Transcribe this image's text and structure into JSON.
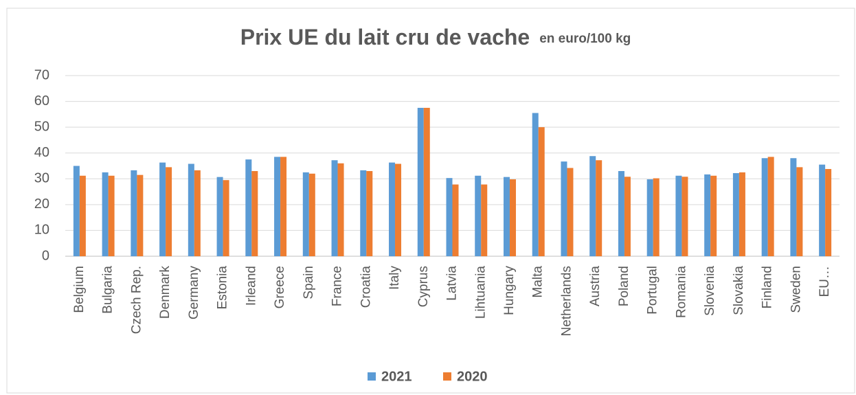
{
  "chart_data": {
    "type": "bar",
    "title": "Prix UE du lait cru de vache",
    "subtitle": "en euro/100 kg",
    "categories": [
      "Belgium",
      "Bulgaria",
      "Czech Rep.",
      "Denmark",
      "Germany",
      "Estonia",
      "Irleand",
      "Greece",
      "Spain",
      "France",
      "Croatia",
      "Italy",
      "Cyprus",
      "Latvia",
      "Lihtuania",
      "Hungary",
      "Malta",
      "Netherlands",
      "Austria",
      "Poland",
      "Portugal",
      "Romania",
      "Slovenia",
      "Slovakia",
      "Finland",
      "Sweden",
      "EU…"
    ],
    "series": [
      {
        "name": "2021",
        "color": "#5b9bd5",
        "values": [
          35,
          32.5,
          33.3,
          36.3,
          35.8,
          30.7,
          37.5,
          38.5,
          32.5,
          37.2,
          33.3,
          36.3,
          57.5,
          30.3,
          31.2,
          30.7,
          55.5,
          36.7,
          38.8,
          33,
          29.8,
          31.2,
          31.7,
          32.2,
          38,
          38,
          35.5
        ]
      },
      {
        "name": "2020",
        "color": "#ed7d31",
        "values": [
          31.2,
          31.2,
          31.5,
          34.5,
          33.3,
          29.5,
          33,
          38.5,
          32,
          36,
          33,
          35.8,
          57.5,
          27.8,
          27.8,
          29.8,
          50,
          34.2,
          37.2,
          30.8,
          30.2,
          30.8,
          31.2,
          32.5,
          38.5,
          34.5,
          33.8
        ]
      }
    ],
    "ylim": [
      0,
      70
    ],
    "yticks": [
      0,
      10,
      20,
      30,
      40,
      50,
      60,
      70
    ],
    "grid": true,
    "legend": "bottom"
  }
}
